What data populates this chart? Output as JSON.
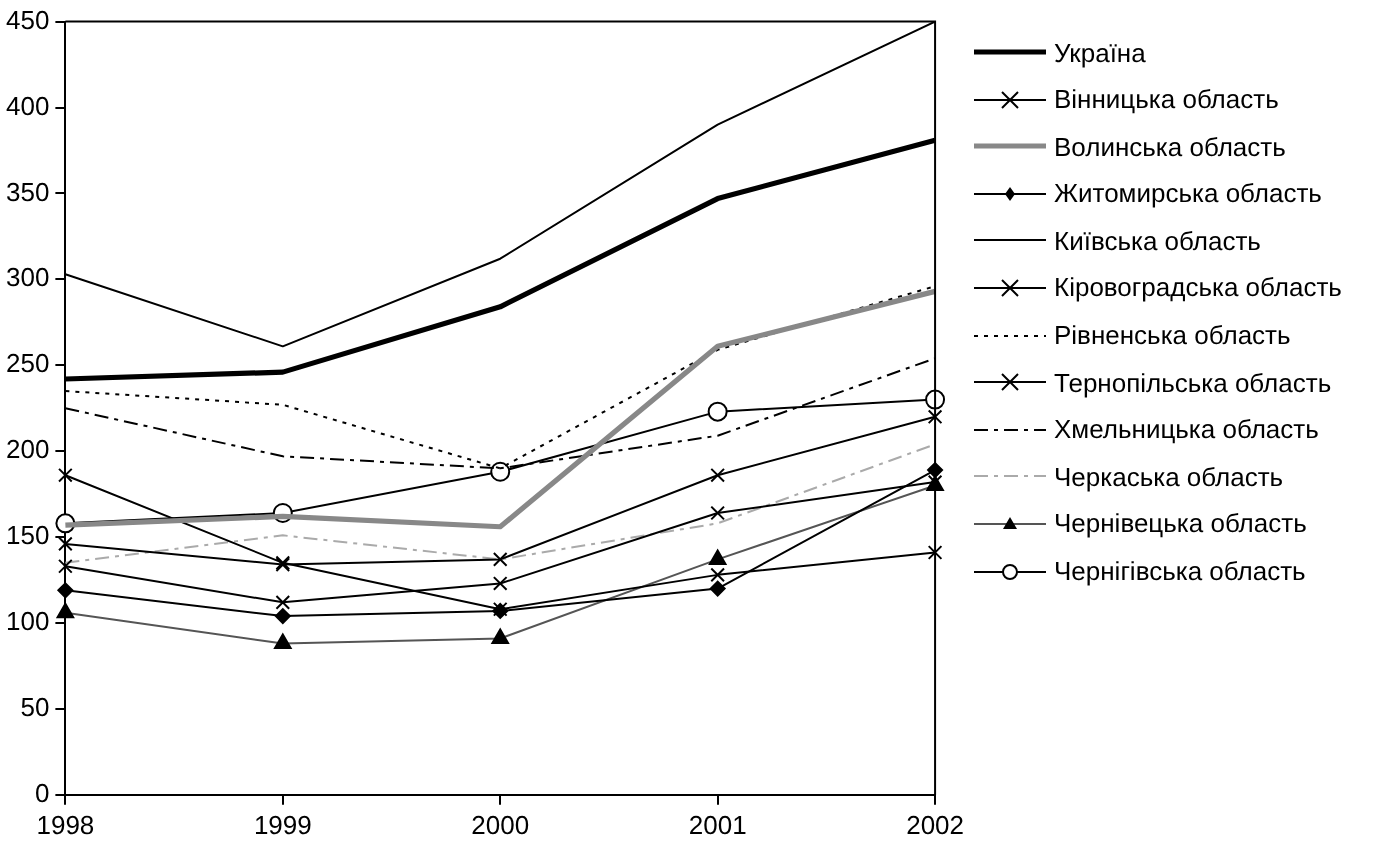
{
  "chart_data": {
    "type": "line",
    "categories": [
      "1998",
      "1999",
      "2000",
      "2001",
      "2002"
    ],
    "ylim": [
      0,
      450
    ],
    "yticks": [
      0,
      50,
      100,
      150,
      200,
      250,
      300,
      350,
      400,
      450
    ],
    "grid": false,
    "legend": "right",
    "series": [
      {
        "name": "Україна",
        "color": "#000000",
        "marker": "none",
        "line_style": "solid",
        "values": [
          242,
          246,
          284,
          347,
          381
        ]
      },
      {
        "name": "Вінницька область",
        "color": "#000000",
        "marker": "cross",
        "line_style": "solid",
        "values": [
          133,
          112,
          123,
          164,
          182
        ]
      },
      {
        "name": "Волинська область",
        "color": "#888888",
        "marker": "none",
        "line_style": "solid",
        "values": [
          157,
          162,
          156,
          261,
          293
        ]
      },
      {
        "name": "Житомирська область",
        "color": "#000000",
        "marker": "diamond",
        "line_style": "solid",
        "values": [
          119,
          104,
          107,
          120,
          189
        ]
      },
      {
        "name": "Київська область",
        "color": "#000000",
        "marker": "none",
        "line_style": "solid",
        "values": [
          303,
          261,
          312,
          390,
          450
        ]
      },
      {
        "name": "Кіровоградська область",
        "color": "#000000",
        "marker": "cross",
        "line_style": "solid",
        "values": [
          146,
          134,
          137,
          186,
          220
        ]
      },
      {
        "name": "Рівненська область",
        "color": "#000000",
        "marker": "none",
        "line_style": "dotted",
        "values": [
          235,
          227,
          190,
          259,
          296
        ]
      },
      {
        "name": "Тернопільська область",
        "color": "#000000",
        "marker": "cross",
        "line_style": "solid",
        "values": [
          186,
          135,
          108,
          128,
          141
        ]
      },
      {
        "name": "Хмельницька область",
        "color": "#000000",
        "marker": "none",
        "line_style": "dashed",
        "values": [
          225,
          197,
          190,
          209,
          254
        ]
      },
      {
        "name": "Черкаська область",
        "color": "#aaaaaa",
        "marker": "none",
        "line_style": "dashed",
        "values": [
          135,
          151,
          137,
          158,
          204
        ]
      },
      {
        "name": "Чернівецька область",
        "color": "#555555",
        "marker": "triangle",
        "line_style": "solid",
        "values": [
          106,
          88,
          91,
          137,
          180
        ]
      },
      {
        "name": "Чернігівська область",
        "color": "#000000",
        "marker": "circle",
        "line_style": "solid",
        "values": [
          158,
          164,
          188,
          223,
          230
        ]
      }
    ]
  }
}
